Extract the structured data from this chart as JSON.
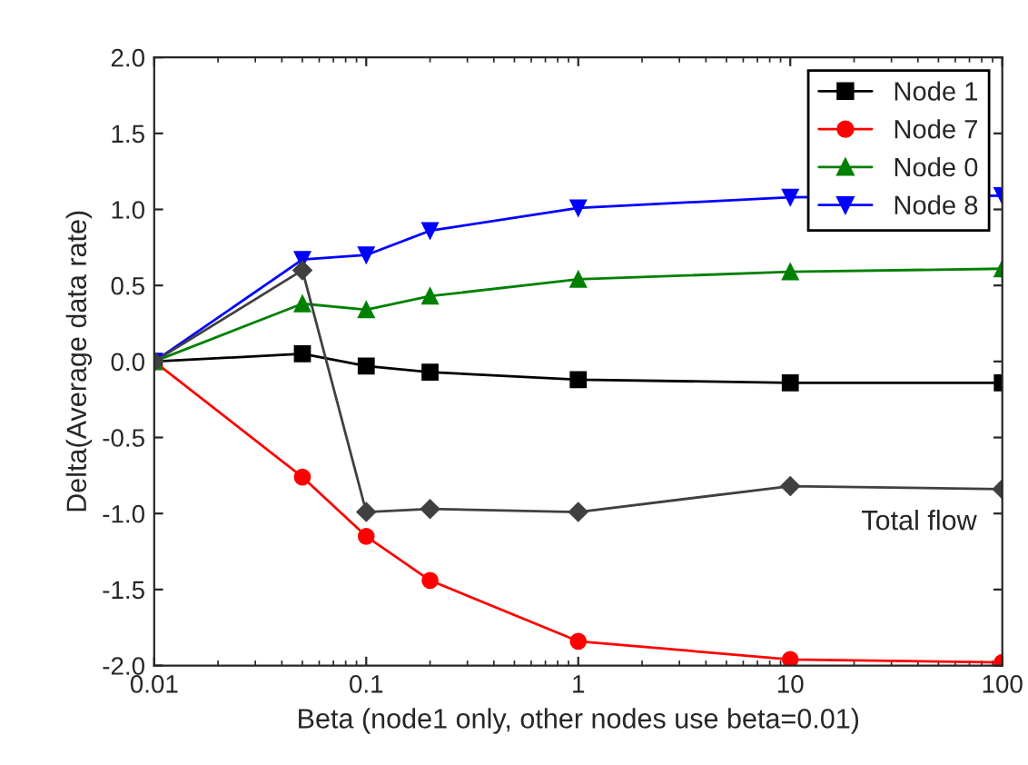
{
  "chart_data": {
    "type": "line",
    "xlabel": "Beta (node1 only, other nodes use beta=0.01)",
    "ylabel": "Delta(Average data rate)",
    "x": [
      0.01,
      0.05,
      0.1,
      0.2,
      1,
      10,
      100
    ],
    "series": [
      {
        "name": "Node 1",
        "color": "#000000",
        "marker": "square",
        "values": [
          0,
          0.05,
          -0.03,
          -0.07,
          -0.12,
          -0.14,
          -0.14
        ]
      },
      {
        "name": "Node 7",
        "color": "#ff0000",
        "marker": "circle",
        "values": [
          0,
          -0.76,
          -1.15,
          -1.44,
          -1.84,
          -1.96,
          -1.98
        ]
      },
      {
        "name": "Node 0",
        "color": "#008000",
        "marker": "triangle",
        "values": [
          0,
          0.38,
          0.34,
          0.43,
          0.54,
          0.59,
          0.61
        ]
      },
      {
        "name": "Node 8",
        "color": "#0000ff",
        "marker": "triangle_down",
        "values": [
          0,
          0.67,
          0.7,
          0.86,
          1.01,
          1.08,
          1.09
        ]
      },
      {
        "color": "#404040",
        "marker": "diamond",
        "values": [
          0,
          0.6,
          -0.99,
          -0.97,
          -0.99,
          -0.82,
          -0.84
        ]
      }
    ],
    "annotations": [
      "Total flow"
    ],
    "log": "x",
    "xlim": [
      0.01,
      100
    ],
    "xticks": [
      0.01,
      0.1,
      1,
      10,
      100
    ],
    "ylim": [
      -2,
      2
    ],
    "yticks": [
      {
        "value": -2,
        "label": "-2.0"
      },
      {
        "value": -1.5,
        "label": "-1.5"
      },
      {
        "value": -1,
        "label": "-1.0"
      },
      {
        "value": -0.5,
        "label": "-0.5"
      },
      {
        "value": 0,
        "label": "0.0"
      },
      {
        "value": 0.5,
        "label": "0.5"
      },
      {
        "value": 1,
        "label": "1.0"
      },
      {
        "value": 1.5,
        "label": "1.5"
      },
      {
        "value": 2,
        "label": "2.0"
      }
    ],
    "grid": false,
    "legend": "top right"
  }
}
